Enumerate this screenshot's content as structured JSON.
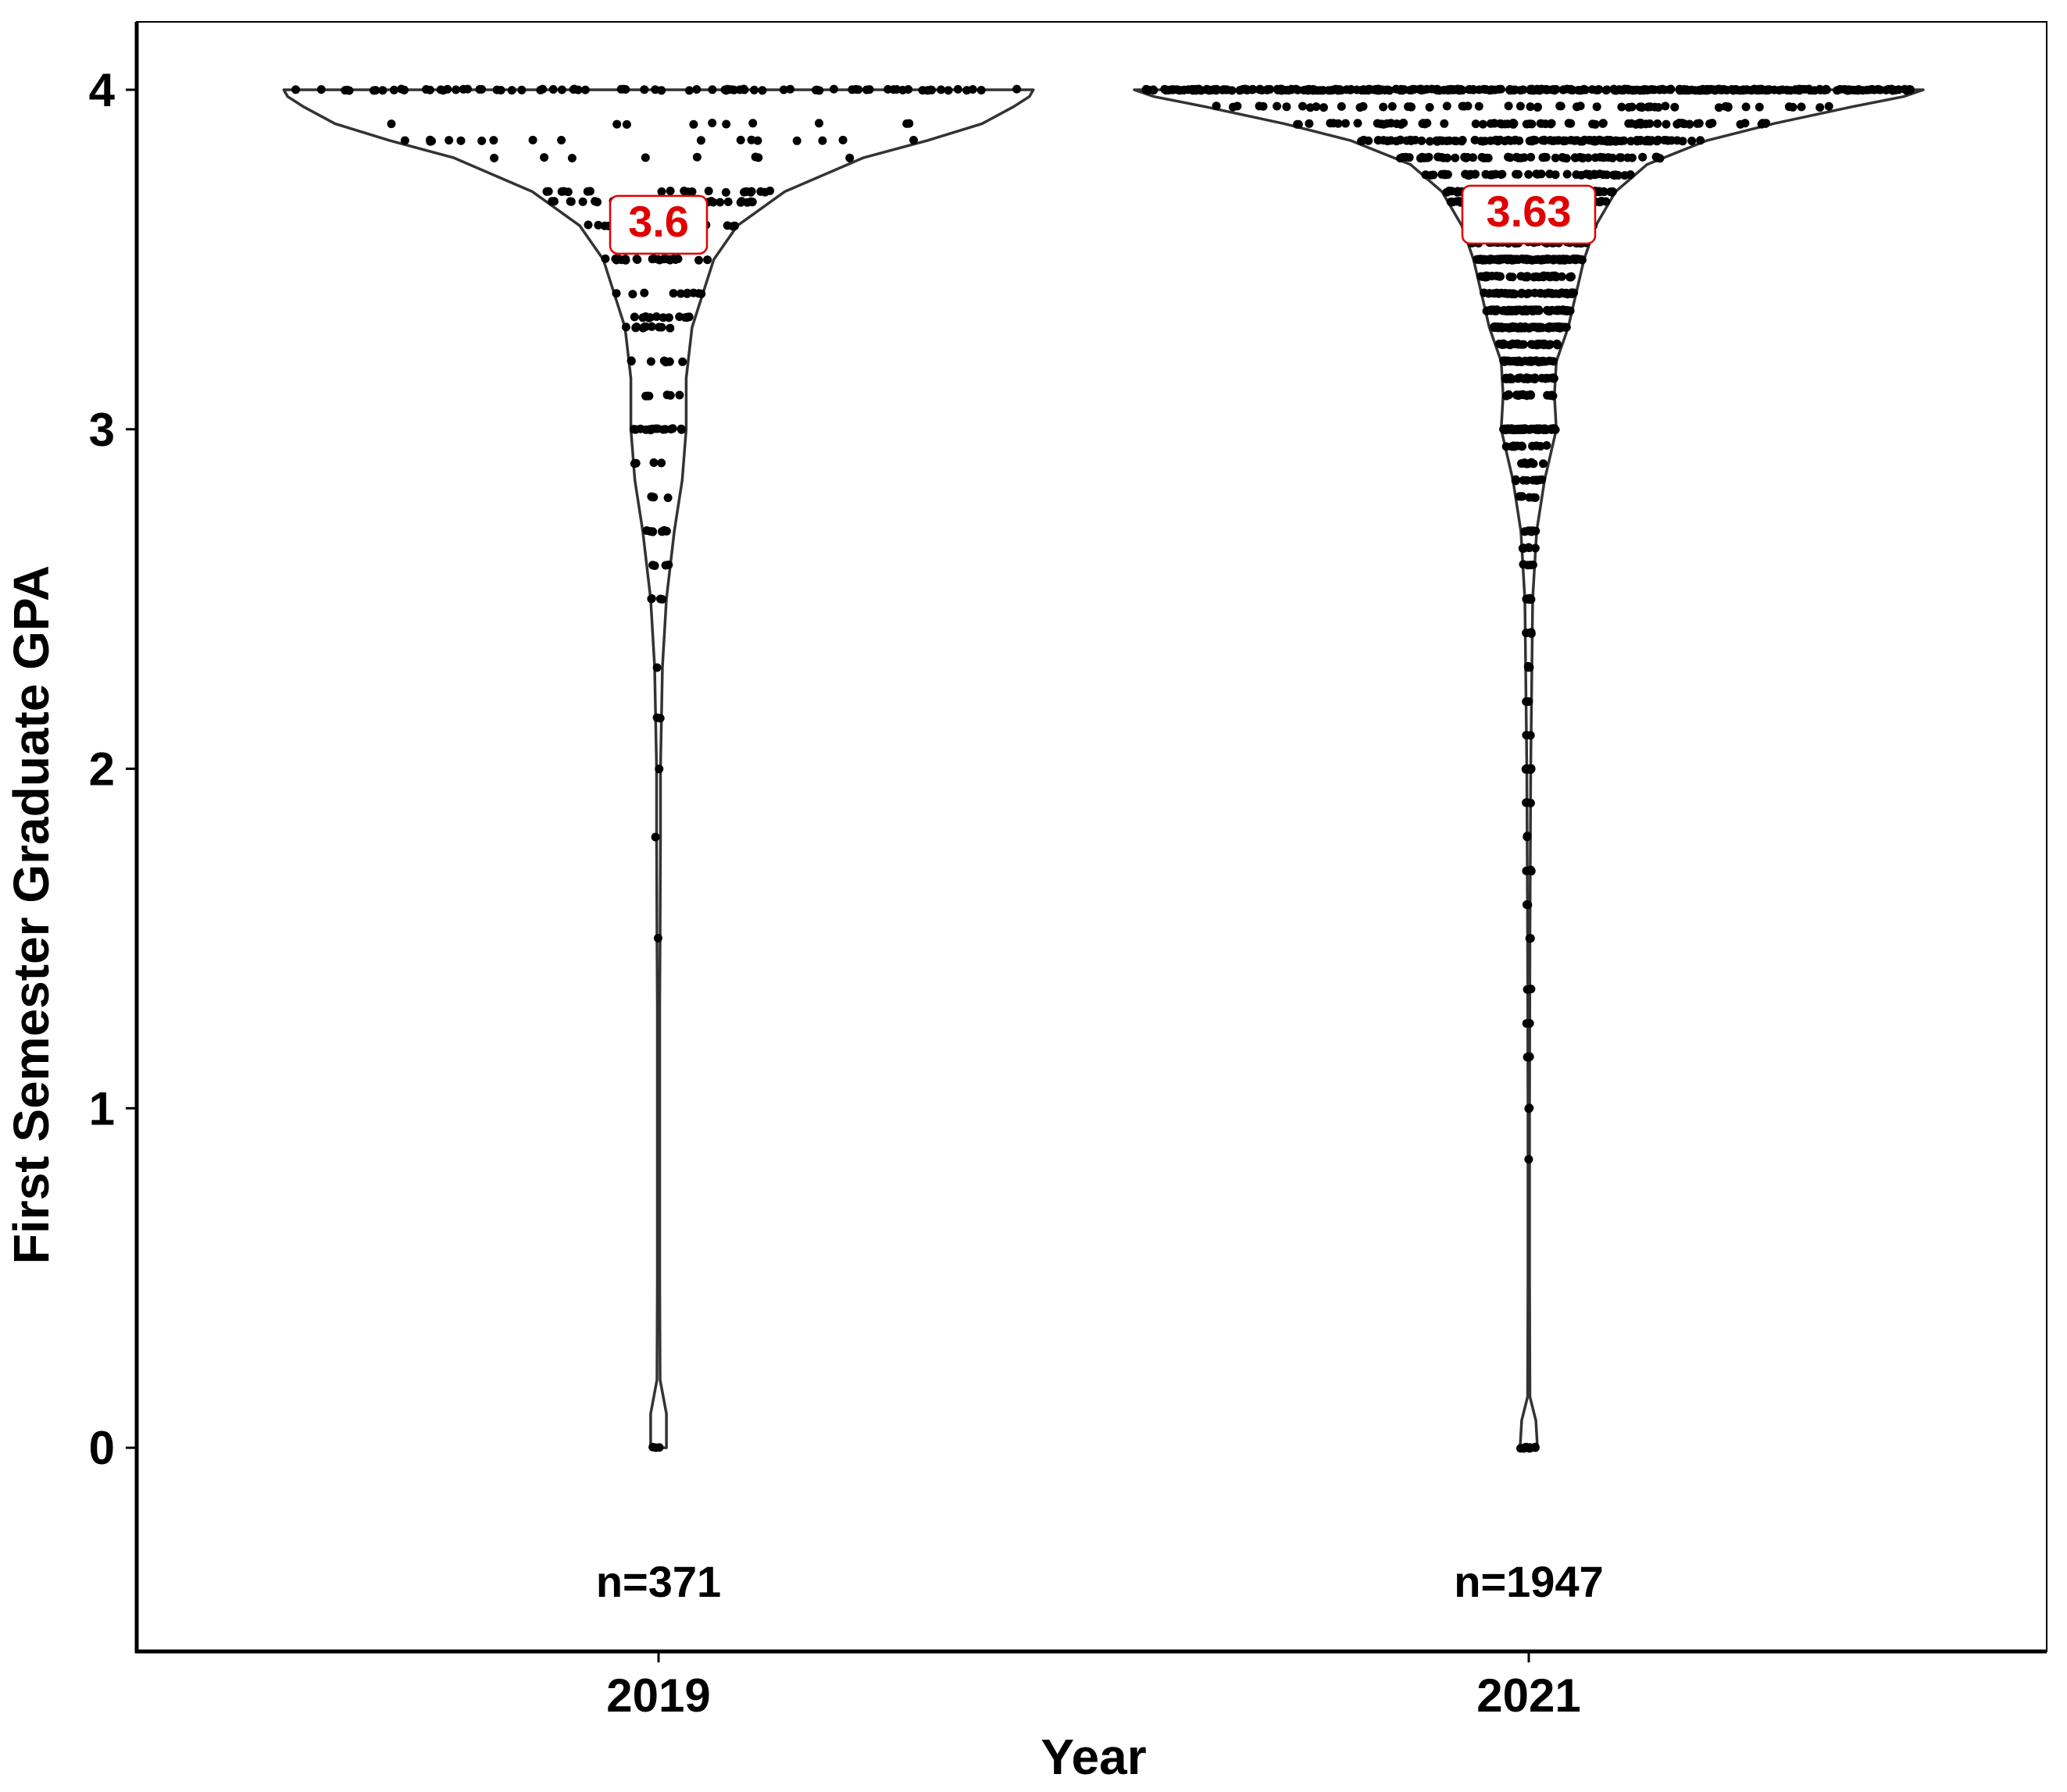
{
  "chart_data": {
    "type": "violin",
    "title": "",
    "xlabel": "Year",
    "ylabel": "First Semester Graduate GPA",
    "categories": [
      "2019",
      "2021"
    ],
    "ylim": [
      -0.6,
      4.2
    ],
    "yticks": [
      0,
      1,
      2,
      3,
      4
    ],
    "grid": false,
    "legend": "none",
    "series": [
      {
        "category": "2019",
        "n_label": "n=371",
        "n": 371,
        "mean": 3.6,
        "mean_label": "3.6",
        "density": [
          [
            0,
            0.02
          ],
          [
            0.1,
            0.02
          ],
          [
            0.2,
            0.004
          ],
          [
            0.5,
            0.003
          ],
          [
            1.0,
            0.003
          ],
          [
            1.3,
            0.003
          ],
          [
            1.5,
            0.004
          ],
          [
            1.8,
            0.005
          ],
          [
            2.0,
            0.005
          ],
          [
            2.3,
            0.01
          ],
          [
            2.5,
            0.02
          ],
          [
            2.7,
            0.04
          ],
          [
            2.85,
            0.06
          ],
          [
            3.0,
            0.07
          ],
          [
            3.15,
            0.07
          ],
          [
            3.3,
            0.085
          ],
          [
            3.5,
            0.14
          ],
          [
            3.6,
            0.2
          ],
          [
            3.7,
            0.32
          ],
          [
            3.8,
            0.52
          ],
          [
            3.85,
            0.68
          ],
          [
            3.9,
            0.82
          ],
          [
            3.95,
            0.9
          ],
          [
            3.98,
            0.94
          ],
          [
            4.0,
            0.95
          ]
        ],
        "point_levels": [
          [
            4.0,
            80
          ],
          [
            3.9,
            10
          ],
          [
            3.85,
            18
          ],
          [
            3.8,
            8
          ],
          [
            3.7,
            22
          ],
          [
            3.67,
            28
          ],
          [
            3.6,
            20
          ],
          [
            3.5,
            24
          ],
          [
            3.4,
            10
          ],
          [
            3.33,
            14
          ],
          [
            3.3,
            10
          ],
          [
            3.2,
            8
          ],
          [
            3.1,
            6
          ],
          [
            3.0,
            16
          ],
          [
            2.9,
            4
          ],
          [
            2.8,
            4
          ],
          [
            2.7,
            8
          ],
          [
            2.6,
            4
          ],
          [
            2.5,
            4
          ],
          [
            2.3,
            1
          ],
          [
            2.15,
            2
          ],
          [
            2.0,
            1
          ],
          [
            1.8,
            1
          ],
          [
            1.5,
            1
          ],
          [
            0.0,
            3
          ]
        ]
      },
      {
        "category": "2021",
        "n_label": "n=1947",
        "n": 1947,
        "mean": 3.63,
        "mean_label": "3.63",
        "density": [
          [
            0,
            0.022
          ],
          [
            0.08,
            0.018
          ],
          [
            0.15,
            0.003
          ],
          [
            0.5,
            0.002
          ],
          [
            1.0,
            0.002
          ],
          [
            1.5,
            0.003
          ],
          [
            2.0,
            0.005
          ],
          [
            2.3,
            0.008
          ],
          [
            2.5,
            0.01
          ],
          [
            2.7,
            0.02
          ],
          [
            2.85,
            0.04
          ],
          [
            2.95,
            0.06
          ],
          [
            3.0,
            0.07
          ],
          [
            3.1,
            0.065
          ],
          [
            3.2,
            0.07
          ],
          [
            3.3,
            0.1
          ],
          [
            3.4,
            0.12
          ],
          [
            3.5,
            0.14
          ],
          [
            3.6,
            0.17
          ],
          [
            3.7,
            0.22
          ],
          [
            3.78,
            0.3
          ],
          [
            3.85,
            0.45
          ],
          [
            3.9,
            0.62
          ],
          [
            3.95,
            0.82
          ],
          [
            3.98,
            0.95
          ],
          [
            4.0,
            1.0
          ]
        ],
        "point_levels": [
          [
            4.0,
            400
          ],
          [
            3.95,
            60
          ],
          [
            3.9,
            80
          ],
          [
            3.85,
            120
          ],
          [
            3.8,
            60
          ],
          [
            3.75,
            50
          ],
          [
            3.7,
            80
          ],
          [
            3.67,
            90
          ],
          [
            3.6,
            60
          ],
          [
            3.55,
            40
          ],
          [
            3.5,
            100
          ],
          [
            3.45,
            40
          ],
          [
            3.4,
            40
          ],
          [
            3.35,
            70
          ],
          [
            3.3,
            70
          ],
          [
            3.25,
            30
          ],
          [
            3.2,
            30
          ],
          [
            3.15,
            30
          ],
          [
            3.1,
            20
          ],
          [
            3.0,
            60
          ],
          [
            2.95,
            12
          ],
          [
            2.9,
            8
          ],
          [
            2.85,
            10
          ],
          [
            2.8,
            6
          ],
          [
            2.7,
            8
          ],
          [
            2.65,
            6
          ],
          [
            2.6,
            4
          ],
          [
            2.5,
            6
          ],
          [
            2.4,
            3
          ],
          [
            2.3,
            3
          ],
          [
            2.2,
            3
          ],
          [
            2.1,
            2
          ],
          [
            2.0,
            10
          ],
          [
            1.9,
            3
          ],
          [
            1.8,
            2
          ],
          [
            1.7,
            3
          ],
          [
            1.6,
            2
          ],
          [
            1.5,
            2
          ],
          [
            1.35,
            2
          ],
          [
            1.25,
            2
          ],
          [
            1.15,
            3
          ],
          [
            1.0,
            3
          ],
          [
            0.85,
            1
          ],
          [
            0.0,
            10
          ]
        ]
      }
    ]
  }
}
